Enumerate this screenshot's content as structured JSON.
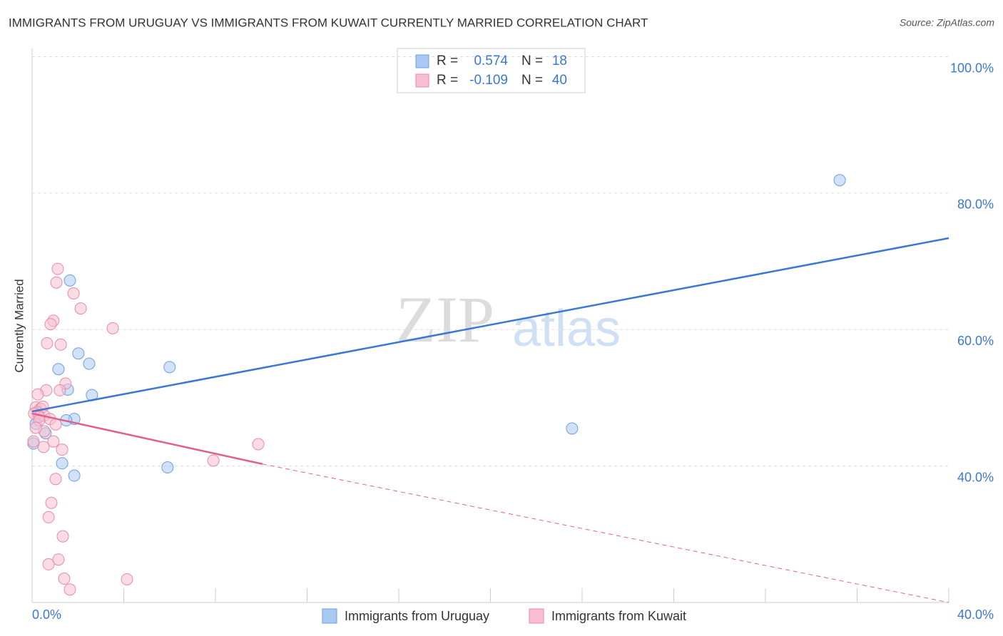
{
  "chart_data": {
    "type": "scatter",
    "title": "IMMIGRANTS FROM URUGUAY VS IMMIGRANTS FROM KUWAIT CURRENTLY MARRIED CORRELATION CHART",
    "source": "Source: ZipAtlas.com",
    "watermark": [
      "ZIP",
      "atlas"
    ],
    "y_label": "Currently Married",
    "xlim": [
      0,
      40
    ],
    "ylim": [
      20,
      100
    ],
    "xticks": [
      {
        "value": 0,
        "label": "0.0%"
      },
      {
        "value": 4,
        "label": null
      },
      {
        "value": 8,
        "label": null
      },
      {
        "value": 12,
        "label": null
      },
      {
        "value": 16,
        "label": null
      },
      {
        "value": 20,
        "label": null
      },
      {
        "value": 24,
        "label": null
      },
      {
        "value": 28,
        "label": null
      },
      {
        "value": 32,
        "label": null
      },
      {
        "value": 36,
        "label": null
      },
      {
        "value": 40,
        "label": "40.0%"
      }
    ],
    "yticks": [
      {
        "value": 40,
        "label": "40.0%"
      },
      {
        "value": 60,
        "label": "60.0%"
      },
      {
        "value": 80,
        "label": "80.0%"
      },
      {
        "value": 100,
        "label": "100.0%"
      }
    ],
    "grid": true,
    "stat_labels": {
      "r": "R =",
      "n": "N ="
    },
    "series": [
      {
        "name": "Immigrants from Uruguay",
        "color": "#6f9fde",
        "fill": "#a9c9f2",
        "line_color": "#3a78d4",
        "r": 0.574,
        "n": 18,
        "trend": {
          "x": [
            0,
            40
          ],
          "y": [
            48.0,
            73.4
          ]
        },
        "x": [
          35.24,
          1.65,
          2.02,
          2.49,
          1.15,
          6.0,
          1.56,
          2.61,
          0.06,
          1.84,
          1.49,
          0.59,
          23.56,
          1.31,
          1.84,
          5.91,
          0.31,
          0.16
        ],
        "values": [
          81.9,
          67.2,
          56.5,
          55.0,
          54.2,
          54.5,
          51.2,
          50.4,
          43.3,
          46.9,
          46.7,
          44.8,
          45.5,
          40.4,
          38.6,
          39.8,
          47.2,
          46.2
        ]
      },
      {
        "name": "Immigrants from Kuwait",
        "color": "#e88aa8",
        "fill": "#f7bfd0",
        "line_color": "#e0608d",
        "r": -0.109,
        "n": 40,
        "trend": {
          "x": [
            0,
            10.05,
            40
          ],
          "y": [
            47.7,
            40.3,
            20.0
          ]
        },
        "x": [
          1.12,
          1.06,
          1.81,
          2.12,
          0.93,
          0.81,
          3.52,
          0.65,
          1.25,
          1.46,
          0.62,
          1.21,
          0.25,
          0.16,
          0.37,
          0.47,
          0.22,
          0.09,
          0.53,
          0.31,
          0.78,
          1.03,
          0.53,
          0.93,
          0.5,
          1.31,
          9.87,
          7.91,
          1.03,
          0.84,
          0.72,
          1.34,
          1.15,
          0.72,
          1.4,
          1.65,
          4.14,
          0.06,
          0.31,
          0.16
        ],
        "values": [
          68.9,
          66.9,
          65.3,
          63.1,
          61.3,
          60.8,
          60.2,
          58.0,
          57.8,
          52.1,
          51.1,
          51.1,
          50.5,
          48.6,
          48.4,
          48.7,
          47.9,
          47.7,
          47.4,
          47.2,
          46.9,
          46.1,
          45.1,
          43.6,
          42.8,
          42.4,
          43.2,
          40.8,
          38.1,
          34.6,
          32.5,
          29.7,
          26.3,
          25.6,
          23.5,
          21.9,
          23.4,
          43.6,
          46.7,
          45.6
        ]
      }
    ]
  }
}
